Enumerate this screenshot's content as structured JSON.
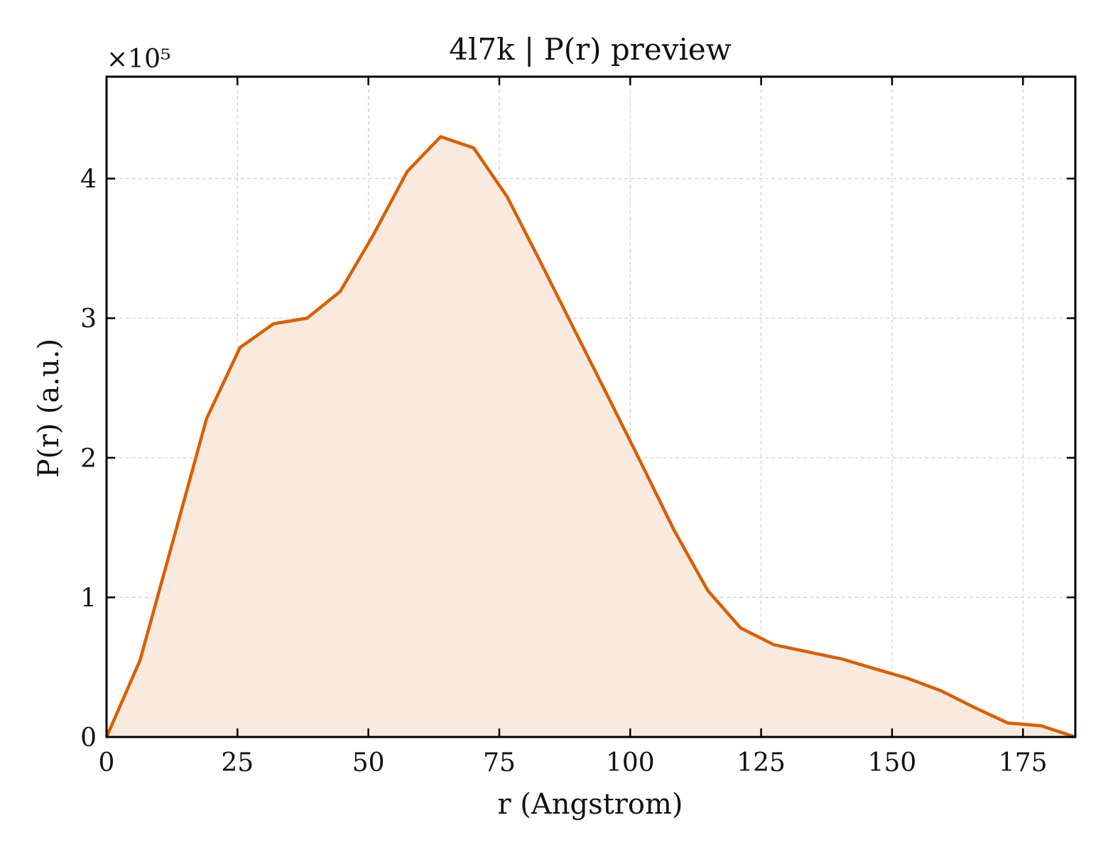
{
  "chart_data": {
    "type": "area",
    "title": "4l7k | P(r) preview",
    "xlabel": "r (Angstrom)",
    "ylabel": "P(r) (a.u.)",
    "y_multiplier_label": "×10⁵",
    "y_scale": 100000,
    "xlim": [
      0,
      185
    ],
    "ylim": [
      0,
      4.73
    ],
    "x_ticks": [
      0,
      25,
      50,
      75,
      100,
      125,
      150,
      175
    ],
    "y_ticks": [
      0,
      1,
      2,
      3,
      4
    ],
    "grid": true,
    "line_color": "#d95f02",
    "fill_color": "#f9eadf",
    "series": [
      {
        "x": [
          0,
          6.4,
          12.8,
          19.1,
          25.5,
          31.9,
          38.3,
          44.6,
          51.0,
          57.4,
          63.8,
          70.1,
          76.5,
          82.9,
          89.3,
          95.6,
          102.0,
          108.4,
          114.8,
          121.1,
          127.5,
          133.9,
          140.3,
          146.6,
          153.0,
          159.4,
          165.8,
          172.1,
          178.5,
          185.0
        ],
        "values": [
          0.0,
          0.55,
          1.42,
          2.28,
          2.79,
          2.96,
          3.0,
          3.19,
          3.6,
          4.05,
          4.3,
          4.22,
          3.87,
          3.4,
          2.92,
          2.45,
          1.97,
          1.48,
          1.05,
          0.78,
          0.66,
          0.61,
          0.56,
          0.49,
          0.42,
          0.33,
          0.21,
          0.1,
          0.08,
          0.0
        ]
      }
    ]
  }
}
